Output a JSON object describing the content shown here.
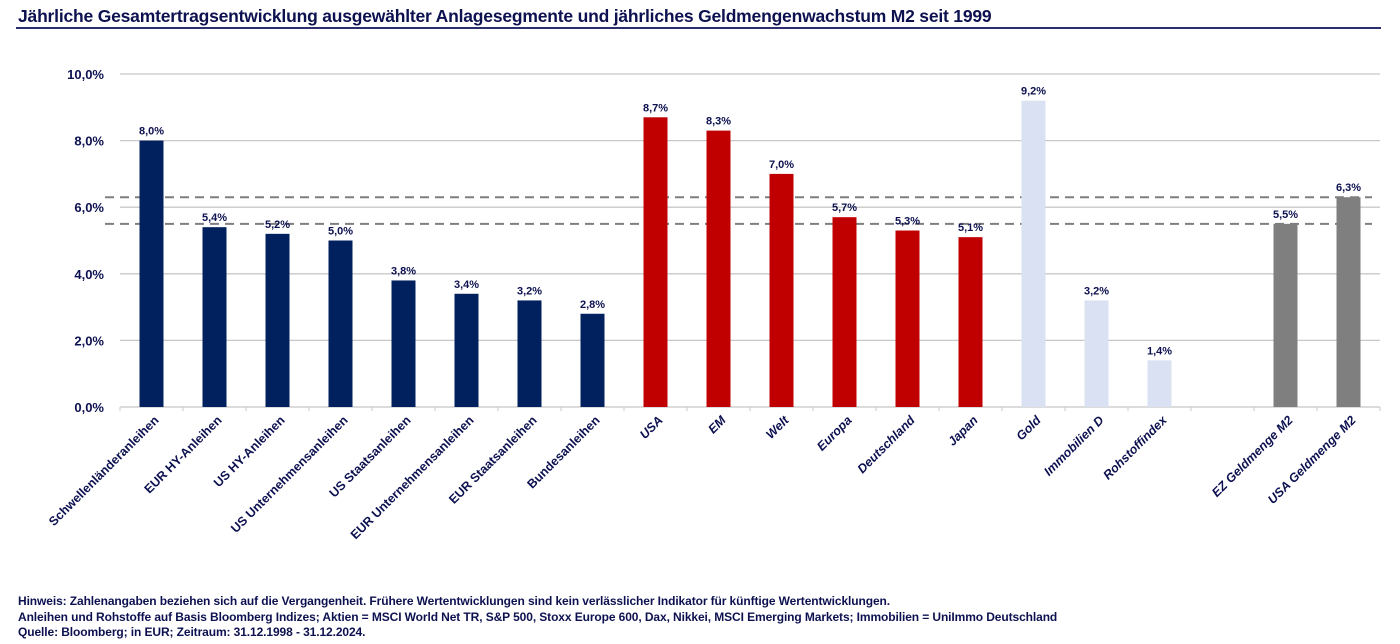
{
  "title": "Jährliche Gesamtertragsentwicklung ausgewählter Anlagesegmente und jährliches Geldmengenwachstum M2 seit 1999",
  "footnotes": [
    "Hinweis: Zahlenangaben beziehen sich auf die Vergangenheit. Frühere Wertentwicklungen sind kein verlässlicher Indikator für künftige Wertentwicklungen.",
    "Anleihen und Rohstoffe auf Basis Bloomberg Indizes; Aktien = MSCI World Net TR, S&P 500, Stoxx Europe 600, Dax, Nikkei, MSCI Emerging Markets; Immobilien =  UniImmo Deutschland",
    "Quelle: Bloomberg;  in EUR; Zeitraum: 31.12.1998 - 31.12.2024."
  ],
  "colors": {
    "bonds": "#00215e",
    "equities": "#c00000",
    "real_assets": "#d9e1f2",
    "money_supply": "#7f7f7f",
    "text": "#0d1150",
    "gridline": "#c8c8c8",
    "reference_line": "#7f7f7f"
  },
  "chart_data": {
    "type": "bar",
    "title": "Jährliche Gesamtertragsentwicklung ausgewählter Anlagesegmente und jährliches Geldmengenwachstum M2 seit 1999",
    "xlabel": "",
    "ylabel": "",
    "ylim": [
      0,
      10
    ],
    "yticks": [
      0,
      2,
      4,
      6,
      8,
      10
    ],
    "ytick_labels": [
      "0,0%",
      "2,0%",
      "4,0%",
      "6,0%",
      "8,0%",
      "10,0%"
    ],
    "grid": true,
    "legend": "none",
    "categories": [
      "Schwellenländeranleihen",
      "EUR HY-Anleihen",
      "US HY-Anleihen",
      "US Unternehmensanleihen",
      "US Staatsanleihen",
      "EUR Unternehmensanleihen",
      "EUR Staatsanleihen",
      "Bundesanleihen",
      "USA",
      "EM",
      "Welt",
      "Europa",
      "Deutschland",
      "Japan",
      "Gold",
      "Immobilien D",
      "Rohstoffindex",
      "",
      "EZ Geldmenge M2",
      "USA Geldmenge M2"
    ],
    "values": [
      8.0,
      5.4,
      5.2,
      5.0,
      3.8,
      3.4,
      3.2,
      2.8,
      8.7,
      8.3,
      7.0,
      5.7,
      5.3,
      5.1,
      9.2,
      3.2,
      1.4,
      null,
      5.5,
      6.3
    ],
    "data_labels": [
      "8,0%",
      "5,4%",
      "5,2%",
      "5,0%",
      "3,8%",
      "3,4%",
      "3,2%",
      "2,8%",
      "8,7%",
      "8,3%",
      "7,0%",
      "5,7%",
      "5,3%",
      "5,1%",
      "9,2%",
      "3,2%",
      "1,4%",
      "",
      "5,5%",
      "6,3%"
    ],
    "groups": [
      "bonds",
      "bonds",
      "bonds",
      "bonds",
      "bonds",
      "bonds",
      "bonds",
      "bonds",
      "equities",
      "equities",
      "equities",
      "equities",
      "equities",
      "equities",
      "real_assets",
      "real_assets",
      "real_assets",
      "gap",
      "money_supply",
      "money_supply"
    ],
    "italic_labels": [
      false,
      false,
      false,
      false,
      false,
      false,
      false,
      false,
      true,
      true,
      true,
      true,
      true,
      true,
      true,
      true,
      true,
      false,
      true,
      true
    ],
    "reference_lines": [
      {
        "name": "USA Geldmenge M2",
        "value": 6.3,
        "style": "dashed"
      },
      {
        "name": "EZ Geldmenge M2",
        "value": 5.5,
        "style": "dashed"
      }
    ]
  }
}
